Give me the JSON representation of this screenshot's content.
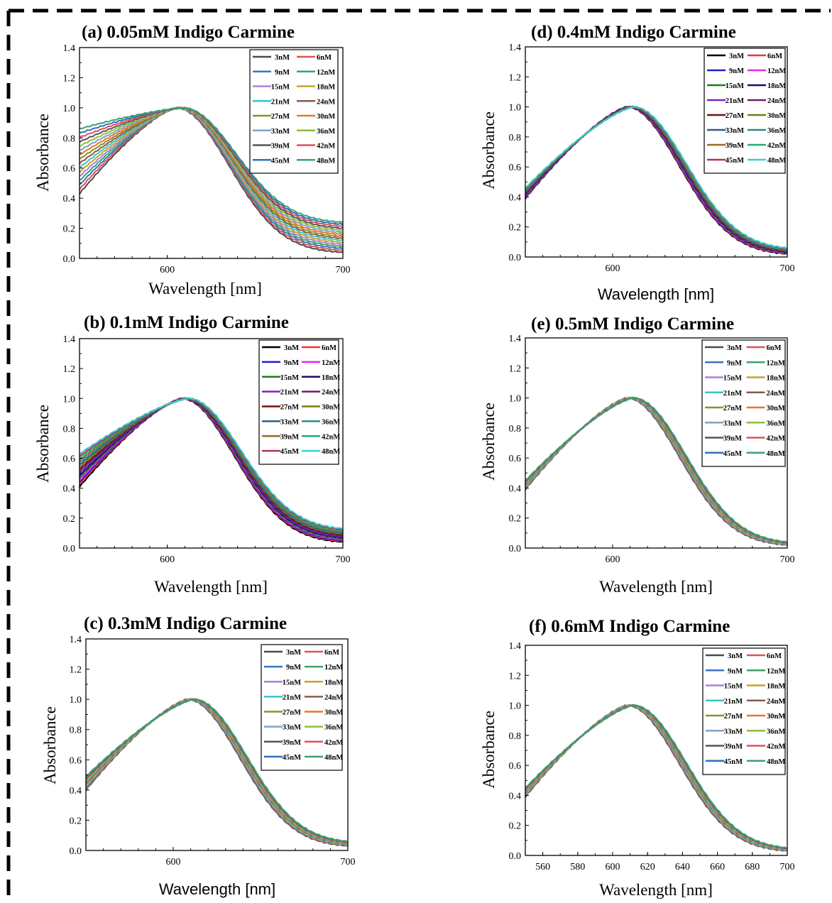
{
  "legend_labels": [
    "3nM",
    "6nM",
    "9nM",
    "12nM",
    "15nM",
    "18nM",
    "21nM",
    "24nM",
    "27nM",
    "30nM",
    "33nM",
    "36nM",
    "39nM",
    "42nM",
    "45nM",
    "48nM"
  ],
  "palettes": {
    "origin": [
      "#4b4b4b",
      "#e25151",
      "#3d73c4",
      "#3aa66a",
      "#b07fd9",
      "#c9a227",
      "#36c5c9",
      "#8a5a4a",
      "#8f8f2a",
      "#e8772a",
      "#7fa3c7",
      "#8bbf3a",
      "#555555",
      "#e0505a",
      "#2f6fc2",
      "#3aa36e"
    ],
    "dark": [
      "#000000",
      "#e53935",
      "#1e1ed6",
      "#ee22ee",
      "#1b7d1b",
      "#111166",
      "#7a22c9",
      "#6b1f6b",
      "#7a0f0f",
      "#7a7a14",
      "#2f5c8a",
      "#2a8a8a",
      "#9a6a20",
      "#20b070",
      "#b0306a",
      "#36d0d0"
    ]
  },
  "charts": [
    {
      "chart_data": {
        "type": "line",
        "title": "(a) 0.05mM Indigo Carmine",
        "xlabel": "Wavelength [nm]",
        "ylabel": "Absorbance",
        "xlim": [
          550,
          700
        ],
        "ylim": [
          0,
          1.4
        ],
        "xticks": [
          600,
          700
        ],
        "yticks": [
          0.0,
          0.2,
          0.4,
          0.6,
          0.8,
          1.0,
          1.2,
          1.4
        ],
        "legend": "top-right",
        "palette": "origin",
        "peak_nm": 607,
        "start_range": [
          0.43,
          0.86
        ],
        "end_range": [
          0.04,
          0.24
        ]
      }
    },
    {
      "chart_data": {
        "type": "line",
        "title": "(b) 0.1mM Indigo Carmine",
        "xlabel": "Wavelength [nm]",
        "ylabel": "Absorbance",
        "xlim": [
          550,
          700
        ],
        "ylim": [
          0,
          1.4
        ],
        "xticks": [
          600,
          700
        ],
        "yticks": [
          0.0,
          0.2,
          0.4,
          0.6,
          0.8,
          1.0,
          1.2,
          1.4
        ],
        "legend": "top-right",
        "palette": "dark",
        "peak_nm": 610,
        "start_range": [
          0.41,
          0.63
        ],
        "end_range": [
          0.04,
          0.13
        ]
      }
    },
    {
      "chart_data": {
        "type": "line",
        "title": "(c) 0.3mM Indigo Carmine",
        "xlabel": "Wavelength [nm]",
        "ylabel": "Absorbance",
        "xlim": [
          550,
          700
        ],
        "ylim": [
          0,
          1.4
        ],
        "xticks": [
          600,
          700
        ],
        "yticks": [
          0.0,
          0.2,
          0.4,
          0.6,
          0.8,
          1.0,
          1.2,
          1.4
        ],
        "legend": "top-right",
        "palette": "origin",
        "peak_nm": 610,
        "start_range": [
          0.4,
          0.49
        ],
        "end_range": [
          0.03,
          0.06
        ]
      }
    },
    {
      "chart_data": {
        "type": "line",
        "title": "(d) 0.4mM Indigo Carmine",
        "xlabel": "Wavelength [nm]",
        "ylabel": "Absorbance",
        "xlim": [
          550,
          700
        ],
        "ylim": [
          0,
          1.4
        ],
        "xticks": [
          600,
          700
        ],
        "yticks": [
          0.0,
          0.2,
          0.4,
          0.6,
          0.8,
          1.0,
          1.2,
          1.4
        ],
        "legend": "top-right",
        "palette": "dark",
        "peak_nm": 610,
        "start_range": [
          0.39,
          0.46
        ],
        "end_range": [
          0.02,
          0.06
        ]
      }
    },
    {
      "chart_data": {
        "type": "line",
        "title": "(e) 0.5mM Indigo Carmine",
        "xlabel": "Wavelength [nm]",
        "ylabel": "Absorbance",
        "xlim": [
          550,
          700
        ],
        "ylim": [
          0,
          1.4
        ],
        "xticks": [
          600,
          700
        ],
        "yticks": [
          0.0,
          0.2,
          0.4,
          0.6,
          0.8,
          1.0,
          1.2,
          1.4
        ],
        "legend": "top-right",
        "palette": "origin",
        "peak_nm": 610,
        "start_range": [
          0.39,
          0.45
        ],
        "end_range": [
          0.02,
          0.04
        ]
      }
    },
    {
      "chart_data": {
        "type": "line",
        "title": "(f) 0.6mM Indigo Carmine",
        "xlabel": "Wavelength [nm]",
        "ylabel": "Absorbance",
        "xlim": [
          550,
          700
        ],
        "ylim": [
          0,
          1.4
        ],
        "xticks": [
          560,
          580,
          600,
          620,
          640,
          660,
          680,
          700
        ],
        "yticks": [
          0.0,
          0.2,
          0.4,
          0.6,
          0.8,
          1.0,
          1.2,
          1.4
        ],
        "legend": "top-right",
        "palette": "origin",
        "peak_nm": 610,
        "start_range": [
          0.39,
          0.45
        ],
        "end_range": [
          0.03,
          0.05
        ]
      }
    }
  ]
}
